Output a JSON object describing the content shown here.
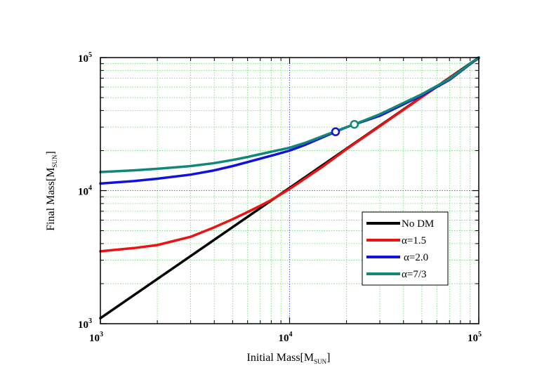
{
  "chart_data": {
    "type": "line",
    "title": "",
    "xlabel": "Initial Mass[M",
    "xlabel_sub": "SUN",
    "xlabel_end": "]",
    "ylabel": "Final Mass[M",
    "ylabel_sub": "SUN",
    "ylabel_end": "]",
    "xscale": "log",
    "yscale": "log",
    "xlim": [
      1000,
      100000
    ],
    "ylim": [
      1000,
      100000
    ],
    "grid": true,
    "legend_position": "bottom-right",
    "x_ticks": [
      {
        "value": 1000,
        "base": "10",
        "exp": "3"
      },
      {
        "value": 10000,
        "base": "10",
        "exp": "4"
      },
      {
        "value": 100000,
        "base": "10",
        "exp": "5"
      }
    ],
    "y_ticks": [
      {
        "value": 1000,
        "base": "10",
        "exp": "3"
      },
      {
        "value": 10000,
        "base": "10",
        "exp": "4"
      },
      {
        "value": 100000,
        "base": "10",
        "exp": "5"
      }
    ],
    "colors": {
      "grid_minor": "#66dd66",
      "grid_major": "#3333cc",
      "no_dm": "#000000",
      "a15": "#ee1111",
      "a20": "#1111dd",
      "a73": "#118877"
    },
    "series": [
      {
        "key": "no_dm",
        "name": "No DM",
        "x": [
          1000,
          100000
        ],
        "y": [
          1100,
          100000
        ]
      },
      {
        "key": "a15",
        "name": "α=1.5",
        "x": [
          1000,
          1500,
          2000,
          3000,
          4000,
          5000,
          6000,
          7000,
          8000,
          10000,
          15000,
          20000,
          30000,
          50000,
          100000
        ],
        "y": [
          3500,
          3700,
          3900,
          4500,
          5300,
          6100,
          6900,
          7700,
          8500,
          10300,
          15200,
          20500,
          30500,
          50500,
          99000
        ]
      },
      {
        "key": "a20",
        "name": "α=2.0",
        "x": [
          1000,
          1500,
          2000,
          3000,
          4000,
          5000,
          6000,
          7000,
          8000,
          10000,
          12000,
          15000,
          17500,
          20000,
          30000,
          50000,
          70000,
          100000
        ],
        "y": [
          11300,
          11800,
          12300,
          13200,
          14200,
          15300,
          16400,
          17400,
          18300,
          20000,
          22000,
          25200,
          27700,
          30000,
          36500,
          52000,
          68000,
          100000
        ]
      },
      {
        "key": "a73",
        "name": "α=7/3",
        "x": [
          1000,
          1500,
          2000,
          3000,
          4000,
          5000,
          6000,
          7000,
          8000,
          10000,
          12000,
          15000,
          20000,
          22000,
          30000,
          50000,
          70000,
          100000
        ],
        "y": [
          13800,
          14200,
          14600,
          15300,
          16100,
          17000,
          17900,
          18800,
          19600,
          21000,
          22800,
          25700,
          30000,
          31500,
          37500,
          53000,
          69000,
          100500
        ]
      }
    ],
    "markers": [
      {
        "series": "a20",
        "x": 17500,
        "y": 27700
      },
      {
        "series": "a73",
        "x": 22000,
        "y": 31500
      }
    ],
    "legend": [
      "No DM",
      "α=1.5",
      "α=2.0",
      "α=7/3"
    ]
  }
}
